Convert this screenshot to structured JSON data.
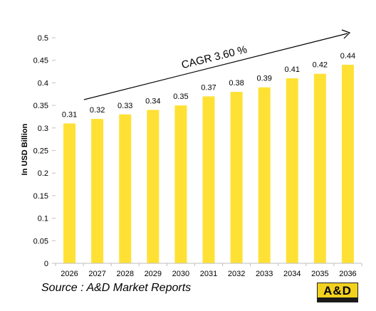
{
  "colors": {
    "bar": "#FFE135",
    "axis": "#bfbfbf",
    "text": "#000000",
    "logo_bg": "#F2D21F"
  },
  "chart_data": {
    "type": "bar",
    "categories": [
      "2026",
      "2027",
      "2028",
      "2029",
      "2030",
      "2031",
      "2032",
      "2033",
      "2034",
      "2035",
      "2036"
    ],
    "values": [
      0.31,
      0.32,
      0.33,
      0.34,
      0.35,
      0.37,
      0.38,
      0.39,
      0.41,
      0.42,
      0.44
    ],
    "ylabel": "In USD Billion",
    "ylim": [
      0,
      0.5
    ],
    "yticks": [
      "0",
      "0.05",
      "0.1",
      "0.15",
      "0.2",
      "0.25",
      "0.3",
      "0.35",
      "0.4",
      "0.45",
      "0.5"
    ],
    "grid": false,
    "annotation": "CAGR  3.60 %"
  },
  "source": "Source : A&D Market Reports",
  "logo": {
    "text": "A&D"
  }
}
